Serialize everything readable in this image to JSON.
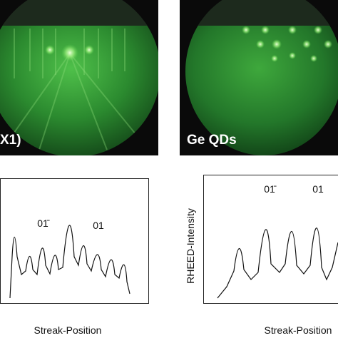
{
  "panels": [
    {
      "image_label": "X1)",
      "peak_labels": [
        "01̄",
        "01"
      ],
      "x_label": "Streak-Position"
    },
    {
      "image_label": "Ge QDs",
      "peak_labels": [
        "01̄",
        "01"
      ],
      "x_label": "Streak-Position",
      "y_label": "RHEED-Intensity"
    }
  ]
}
